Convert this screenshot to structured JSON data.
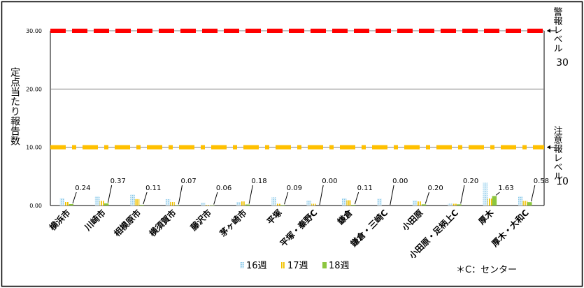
{
  "chart_data": {
    "type": "bar",
    "ylabel": "定点当たり報告数",
    "ylim": [
      0,
      30
    ],
    "yticks": [
      "0.00",
      "10.00",
      "20.00",
      "30.00"
    ],
    "categories": [
      "横浜市",
      "川崎市",
      "相模原市",
      "横須賀市",
      "藤沢市",
      "茅ヶ崎市",
      "平塚",
      "平塚・秦野C",
      "鎌倉",
      "鎌倉・三崎C",
      "小田原",
      "小田原・足柄上C",
      "厚木",
      "厚木・大和C"
    ],
    "series": [
      {
        "name": "16週",
        "color": "#a9d8ef",
        "pattern": "dots",
        "values": [
          1.3,
          1.6,
          1.9,
          1.1,
          0.5,
          0.6,
          1.4,
          0.9,
          1.3,
          1.2,
          0.9,
          0.3,
          3.9,
          1.6
        ]
      },
      {
        "name": "17週",
        "color": "#f2c200",
        "pattern": "vstripes",
        "values": [
          0.6,
          0.8,
          1.1,
          0.6,
          0.1,
          0.7,
          0.3,
          0.3,
          0.9,
          0.0,
          0.7,
          0.3,
          1.2,
          0.8
        ]
      },
      {
        "name": "18週",
        "color": "#8cc63f",
        "pattern": "solid",
        "values": [
          0.24,
          0.37,
          0.11,
          0.07,
          0.06,
          0.18,
          0.09,
          0.0,
          0.11,
          0.0,
          0.2,
          0.2,
          1.63,
          0.58
        ]
      }
    ],
    "data_labels": [
      "0.24",
      "0.37",
      "0.11",
      "0.07",
      "0.06",
      "0.18",
      "0.09",
      "0.00",
      "0.11",
      "0.00",
      "0.20",
      "0.20",
      "1.63",
      "0.58"
    ],
    "thresholds": [
      {
        "value": 30,
        "label_main": "警報レベル",
        "label_num": "30",
        "color": "#ff0000"
      },
      {
        "value": 10,
        "label_main": "注意報レベル",
        "label_num": "10",
        "color": "#ffc000"
      }
    ],
    "legend_position": "bottom",
    "note": "＊C：センター"
  }
}
